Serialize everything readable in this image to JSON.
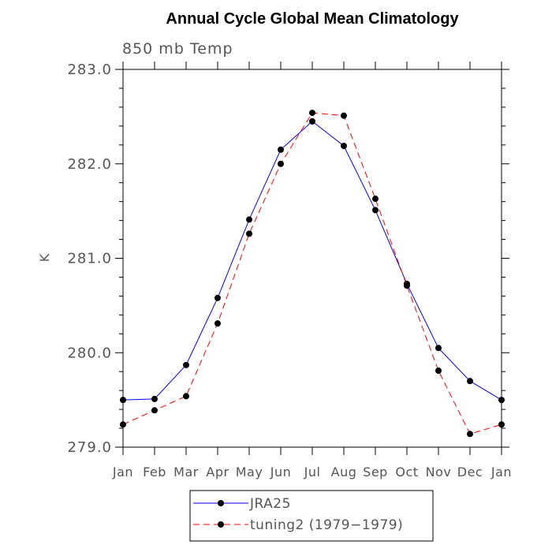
{
  "chart_data": {
    "type": "line",
    "title": "Annual Cycle Global Mean Climatology",
    "subtitle": "850 mb Temp",
    "ylabel": "K",
    "xlabel": "",
    "categories": [
      "Jan",
      "Feb",
      "Mar",
      "Apr",
      "May",
      "Jun",
      "Jul",
      "Aug",
      "Sep",
      "Oct",
      "Nov",
      "Dec",
      "Jan"
    ],
    "ylim": [
      279.0,
      283.0
    ],
    "yticks": [
      "279.0",
      "280.0",
      "281.0",
      "282.0",
      "283.0"
    ],
    "grid": false,
    "legend_position": "bottom",
    "series": [
      {
        "name": "JRA25",
        "color": "#0000ff",
        "line_style": "solid",
        "marker": "filled-circle",
        "values": [
          279.5,
          279.51,
          279.87,
          280.58,
          281.41,
          282.15,
          282.45,
          282.19,
          281.51,
          280.73,
          280.05,
          279.7,
          279.5
        ]
      },
      {
        "name": "tuning2 (1979−1979)",
        "color": "#ff0000",
        "line_style": "dashed",
        "marker": "filled-circle",
        "values": [
          279.24,
          279.39,
          279.54,
          280.31,
          281.26,
          282.0,
          282.54,
          282.51,
          281.63,
          280.71,
          279.81,
          279.14,
          279.24
        ]
      }
    ]
  }
}
